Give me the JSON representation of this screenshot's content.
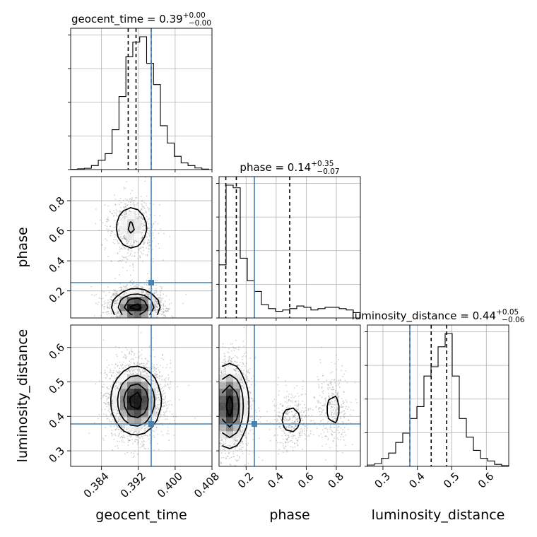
{
  "chart_data": {
    "type": "corner",
    "title_prefix": [
      "geocent_time = ",
      "phase = ",
      "luminosity_distance = "
    ],
    "parameters": [
      {
        "name": "geocent_time",
        "label": "geocent_time",
        "median": "0.39",
        "upper": "+0.00",
        "lower": "−0.00",
        "range": [
          0.3773,
          0.408
        ],
        "ticks": [
          0.384,
          0.392,
          0.4,
          0.408
        ],
        "tick_labels": [
          "0.384",
          "0.392",
          "0.400",
          "0.408"
        ],
        "quantiles": [
          0.3898,
          0.3915,
          0.3948
        ],
        "truth": 0.3948
      },
      {
        "name": "phase",
        "label": "phase",
        "median": "0.14",
        "upper": "+0.35",
        "lower": "−0.07",
        "range": [
          0.02,
          0.96
        ],
        "ticks": [
          0.2,
          0.4,
          0.6,
          0.8
        ],
        "tick_labels": [
          "0.2",
          "0.4",
          "0.6",
          "0.8"
        ],
        "quantiles": [
          0.065,
          0.135,
          0.49
        ],
        "truth": 0.255
      },
      {
        "name": "luminosity_distance",
        "label": "luminosity_distance",
        "median": "0.44",
        "upper": "+0.05",
        "lower": "−0.06",
        "range": [
          0.255,
          0.665
        ],
        "ticks": [
          0.3,
          0.4,
          0.5,
          0.6
        ],
        "tick_labels": [
          "0.3",
          "0.4",
          "0.5",
          "0.6"
        ],
        "quantiles": [
          0.378,
          0.44,
          0.485
        ],
        "truth": 0.378
      }
    ],
    "hist": [
      {
        "edges_start": 0.3773,
        "bin_width": 0.0015,
        "counts": [
          0.002,
          0.006,
          0.01,
          0.03,
          0.07,
          0.12,
          0.3,
          0.55,
          0.85,
          0.96,
          1.0,
          0.8,
          0.64,
          0.33,
          0.2,
          0.1,
          0.05,
          0.03,
          0.012,
          0.004
        ]
      },
      {
        "edges_start": 0.02,
        "bin_width": 0.047,
        "counts": [
          0.4,
          1.0,
          0.98,
          0.45,
          0.28,
          0.2,
          0.1,
          0.07,
          0.05,
          0.06,
          0.07,
          0.09,
          0.08,
          0.06,
          0.07,
          0.08,
          0.08,
          0.07,
          0.06,
          0.04
        ]
      },
      {
        "edges_start": 0.255,
        "bin_width": 0.0205,
        "counts": [
          0.01,
          0.02,
          0.06,
          0.1,
          0.18,
          0.25,
          0.36,
          0.45,
          0.68,
          0.75,
          0.9,
          1.0,
          0.68,
          0.36,
          0.22,
          0.12,
          0.06,
          0.04,
          0.015,
          0.005
        ]
      }
    ],
    "pairs": [
      {
        "x": 0,
        "y": 1,
        "modes": [
          {
            "cx": 0.3915,
            "cy": 0.095,
            "sx": 0.0025,
            "sy": 0.055,
            "w": 1.0
          },
          {
            "cx": 0.3905,
            "cy": 0.62,
            "sx": 0.0022,
            "sy": 0.09,
            "w": 0.35
          }
        ]
      },
      {
        "x": 0,
        "y": 2,
        "modes": [
          {
            "cx": 0.3915,
            "cy": 0.445,
            "sx": 0.0026,
            "sy": 0.048,
            "w": 1.0
          }
        ]
      },
      {
        "x": 1,
        "y": 2,
        "modes": [
          {
            "cx": 0.09,
            "cy": 0.43,
            "sx": 0.06,
            "sy": 0.06,
            "w": 1.0
          },
          {
            "cx": 0.5,
            "cy": 0.39,
            "sx": 0.06,
            "sy": 0.035,
            "w": 0.2
          },
          {
            "cx": 0.78,
            "cy": 0.42,
            "sx": 0.05,
            "sy": 0.05,
            "w": 0.17
          }
        ]
      }
    ],
    "colors": {
      "truth": "#4682b4",
      "hist": "#000000",
      "grid": "#b0b0b0",
      "scatter": "#7f7f7f"
    },
    "grid": true
  }
}
